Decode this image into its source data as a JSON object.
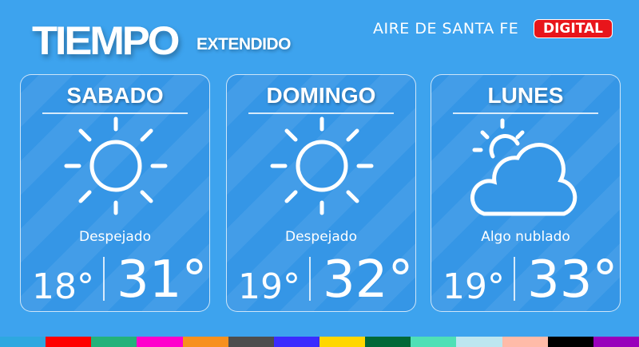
{
  "header": {
    "title": "TIEMPO",
    "subtitle": "EXTENDIDO",
    "brand": "AIRE DE SANTA FE",
    "badge": "DIGITAL"
  },
  "days": [
    {
      "name": "SABADO",
      "condition": "Despejado",
      "min": "18°",
      "max": "31°",
      "icon": "sun-icon"
    },
    {
      "name": "DOMINGO",
      "condition": "Despejado",
      "min": "19°",
      "max": "32°",
      "icon": "sun-icon"
    },
    {
      "name": "LUNES",
      "condition": "Algo nublado",
      "min": "19°",
      "max": "33°",
      "icon": "partly-cloudy-icon"
    }
  ],
  "colors": {
    "background": "#3da3ee",
    "badge": "#e8151b",
    "strip": [
      "#2ea8e0",
      "#ff0000",
      "#23b27a",
      "#ff00cc",
      "#f7901e",
      "#4d4d4d",
      "#3b2bff",
      "#ffd700",
      "#006837",
      "#4fe0b6",
      "#bde6f0",
      "#ffbba8",
      "#000000",
      "#9900bb"
    ]
  }
}
